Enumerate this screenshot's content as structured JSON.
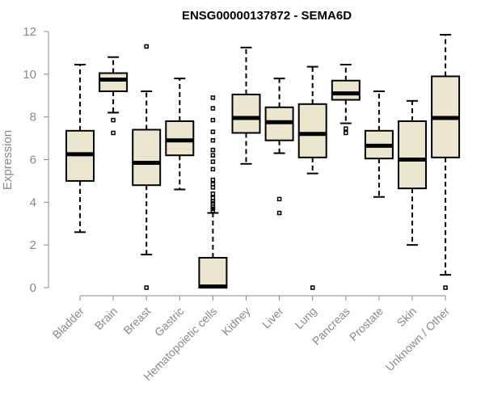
{
  "chart_data": {
    "type": "box",
    "title": "ENSG00000137872 - SEMA6D",
    "xlabel": "",
    "ylabel": "Expression",
    "ylim": [
      0,
      12
    ],
    "yticks": [
      0,
      2,
      4,
      6,
      8,
      10,
      12
    ],
    "grid": false,
    "categories": [
      "Bladder",
      "Brain",
      "Breast",
      "Gastric",
      "Hematopoietic cells",
      "Kidney",
      "Liver",
      "Lung",
      "Pancreas",
      "Prostate",
      "Skin",
      "Unknown / Other"
    ],
    "boxes": [
      {
        "category": "Bladder",
        "whisker_low": 2.6,
        "q1": 5.0,
        "median": 6.25,
        "q3": 7.35,
        "whisker_high": 10.45,
        "outliers": []
      },
      {
        "category": "Brain",
        "whisker_low": 8.2,
        "q1": 9.2,
        "median": 9.75,
        "q3": 10.05,
        "whisker_high": 10.8,
        "outliers": [
          7.85,
          7.25
        ]
      },
      {
        "category": "Breast",
        "whisker_low": 1.55,
        "q1": 4.8,
        "median": 5.85,
        "q3": 7.4,
        "whisker_high": 9.2,
        "outliers": [
          11.3,
          0.0
        ]
      },
      {
        "category": "Gastric",
        "whisker_low": 4.6,
        "q1": 6.2,
        "median": 6.9,
        "q3": 7.8,
        "whisker_high": 9.8,
        "outliers": []
      },
      {
        "category": "Hematopoietic cells",
        "whisker_low": 0.0,
        "q1": 0.0,
        "median": 0.05,
        "q3": 1.4,
        "whisker_high": 3.5,
        "outliers": [
          8.9,
          8.4,
          7.85,
          7.3,
          6.9,
          6.45,
          6.2,
          5.9,
          5.55,
          5.05,
          4.85,
          4.7,
          4.4,
          4.2,
          4.05,
          3.95,
          3.8,
          3.7,
          3.6
        ]
      },
      {
        "category": "Kidney",
        "whisker_low": 5.8,
        "q1": 7.25,
        "median": 7.95,
        "q3": 9.05,
        "whisker_high": 11.25,
        "outliers": []
      },
      {
        "category": "Liver",
        "whisker_low": 6.3,
        "q1": 6.9,
        "median": 7.75,
        "q3": 8.45,
        "whisker_high": 9.8,
        "outliers": [
          4.15,
          3.5
        ]
      },
      {
        "category": "Lung",
        "whisker_low": 5.35,
        "q1": 6.1,
        "median": 7.2,
        "q3": 8.6,
        "whisker_high": 10.35,
        "outliers": [
          0.0
        ]
      },
      {
        "category": "Pancreas",
        "whisker_low": 7.7,
        "q1": 8.8,
        "median": 9.1,
        "q3": 9.7,
        "whisker_high": 10.45,
        "outliers": [
          7.45,
          7.25
        ]
      },
      {
        "category": "Prostate",
        "whisker_low": 4.25,
        "q1": 6.05,
        "median": 6.65,
        "q3": 7.35,
        "whisker_high": 9.2,
        "outliers": []
      },
      {
        "category": "Skin",
        "whisker_low": 2.0,
        "q1": 4.65,
        "median": 6.0,
        "q3": 7.8,
        "whisker_high": 8.75,
        "outliers": []
      },
      {
        "category": "Unknown / Other",
        "whisker_low": 0.6,
        "q1": 6.1,
        "median": 7.95,
        "q3": 9.9,
        "whisker_high": 11.85,
        "outliers": [
          0.0
        ]
      }
    ]
  }
}
